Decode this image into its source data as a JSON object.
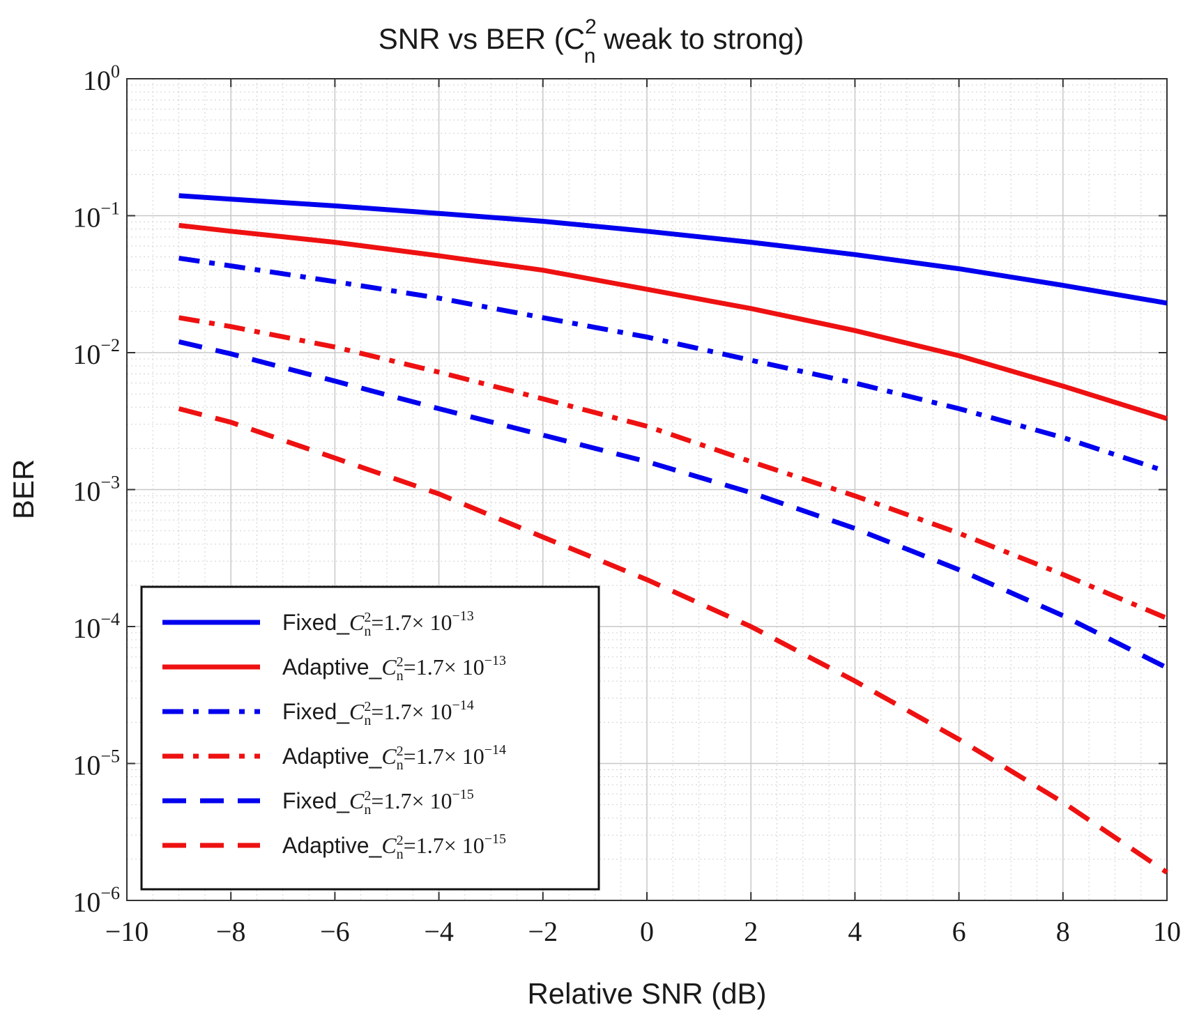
{
  "chart_data": {
    "type": "line",
    "title": "SNR vs BER (C",
    "title_sub": "n",
    "title_sup": "2",
    "title_rest": " weak to strong)",
    "xlabel": "Relative SNR (dB)",
    "ylabel": "BER",
    "xlim": [
      -10,
      10
    ],
    "ylim_log10": [
      -6,
      0
    ],
    "y_scale": "log",
    "grid": true,
    "legend_position": "bottom-left",
    "x_ticks": [
      "−10",
      "−8",
      "−6",
      "−4",
      "−2",
      "0",
      "2",
      "4",
      "6",
      "8",
      "10"
    ],
    "x_tick_values": [
      -10,
      -8,
      -6,
      -4,
      -2,
      0,
      2,
      4,
      6,
      8,
      10
    ],
    "y_ticks": [
      {
        "base": "10",
        "exp": "0",
        "value": 0
      },
      {
        "base": "10",
        "exp": "−1",
        "value": -1
      },
      {
        "base": "10",
        "exp": "−2",
        "value": -2
      },
      {
        "base": "10",
        "exp": "−3",
        "value": -3
      },
      {
        "base": "10",
        "exp": "−4",
        "value": -4
      },
      {
        "base": "10",
        "exp": "−5",
        "value": -5
      },
      {
        "base": "10",
        "exp": "−6",
        "value": -6
      }
    ],
    "x": [
      -9,
      -8,
      -6,
      -4,
      -2,
      0,
      2,
      4,
      6,
      8,
      10
    ],
    "series": [
      {
        "name": "Fixed",
        "cn2_base": "1.7",
        "cn2_exp": "−13",
        "color": "#0000ee",
        "style": "solid",
        "values": [
          0.14,
          0.132,
          0.118,
          0.104,
          0.091,
          0.077,
          0.064,
          0.052,
          0.041,
          0.031,
          0.023
        ]
      },
      {
        "name": "Adaptive",
        "cn2_base": "1.7",
        "cn2_exp": "−13",
        "color": "#ee1111",
        "style": "solid",
        "values": [
          0.085,
          0.077,
          0.064,
          0.051,
          0.04,
          0.029,
          0.021,
          0.0145,
          0.0095,
          0.0057,
          0.0033
        ]
      },
      {
        "name": "Fixed",
        "cn2_base": "1.7",
        "cn2_exp": "−14",
        "color": "#0000ee",
        "style": "dashdot",
        "values": [
          0.049,
          0.043,
          0.033,
          0.025,
          0.018,
          0.013,
          0.0088,
          0.006,
          0.0039,
          0.0024,
          0.00135
        ]
      },
      {
        "name": "Adaptive",
        "cn2_base": "1.7",
        "cn2_exp": "−14",
        "color": "#ee1111",
        "style": "dashdot",
        "values": [
          0.018,
          0.0155,
          0.011,
          0.0072,
          0.0046,
          0.0029,
          0.0016,
          0.0009,
          0.00048,
          0.00024,
          0.000115
        ]
      },
      {
        "name": "Fixed",
        "cn2_base": "1.7",
        "cn2_exp": "−15",
        "color": "#0000ee",
        "style": "dashed",
        "values": [
          0.012,
          0.0098,
          0.0062,
          0.0039,
          0.0025,
          0.0016,
          0.00095,
          0.00052,
          0.00026,
          0.00012,
          5e-05
        ]
      },
      {
        "name": "Adaptive",
        "cn2_base": "1.7",
        "cn2_exp": "−15",
        "color": "#ee1111",
        "style": "dashed",
        "values": [
          0.0039,
          0.0031,
          0.0017,
          0.00093,
          0.00045,
          0.00022,
          0.0001,
          4e-05,
          1.5e-05,
          5.2e-06,
          1.6e-06
        ]
      }
    ]
  }
}
